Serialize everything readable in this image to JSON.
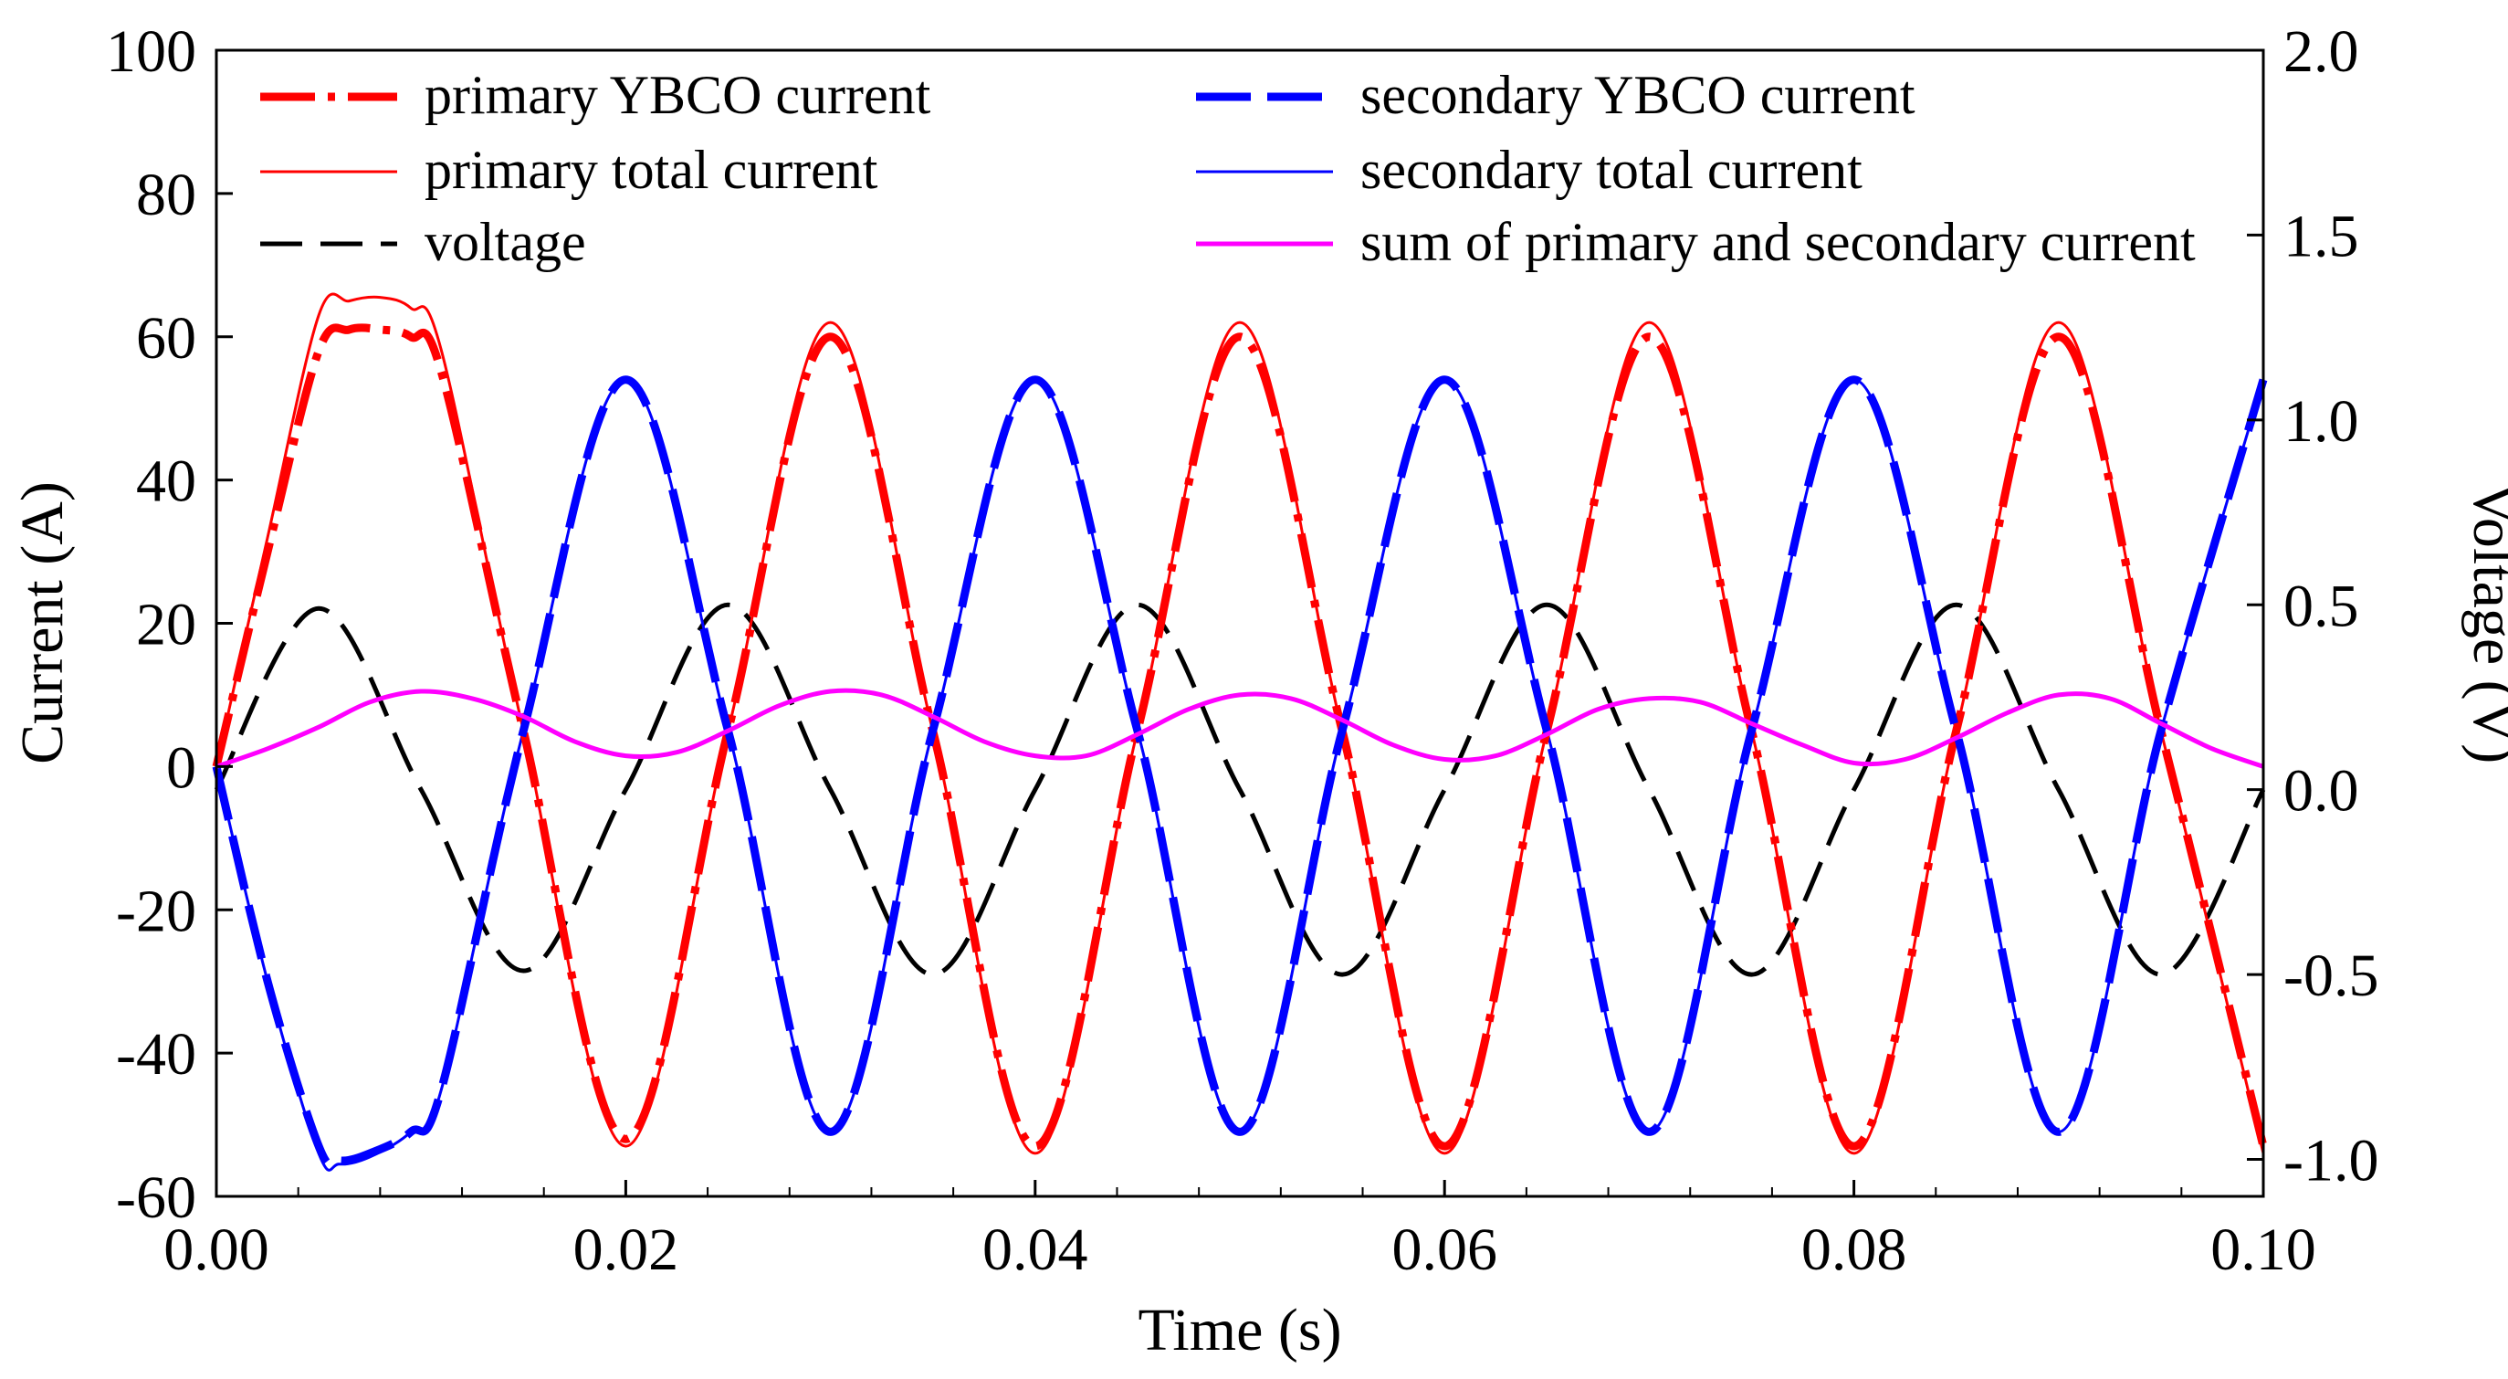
{
  "chart_data": {
    "type": "line",
    "title": "",
    "xlabel": "Time (s)",
    "ylabel": "Current (A)",
    "y2label": "Voltage (V)",
    "xlim": [
      0,
      0.1
    ],
    "ylim": [
      -60,
      100
    ],
    "y2lim": [
      -1.1,
      2.0
    ],
    "x_ticks": [
      "0.00",
      "0.02",
      "0.04",
      "0.06",
      "0.08",
      "0.10"
    ],
    "y_ticks": [
      "100",
      "80",
      "60",
      "40",
      "20",
      "0",
      "-20",
      "-40",
      "-60"
    ],
    "y2_ticks": [
      "2.0",
      "1.5",
      "1.0",
      "0.5",
      "0.0",
      "-0.5",
      "-1.0"
    ],
    "grid": false,
    "legend_position": "top",
    "series": [
      {
        "name": "primary YBCO current",
        "axis": "left",
        "color": "#ff0000",
        "style": "thick-dash-dot",
        "x": [
          0,
          0.0025,
          0.005,
          0.0065,
          0.008,
          0.0095,
          0.011,
          0.015,
          0.02,
          0.025,
          0.03,
          0.035,
          0.04,
          0.045,
          0.05,
          0.055,
          0.06,
          0.065,
          0.07,
          0.075,
          0.08,
          0.085,
          0.09,
          0.095,
          0.1
        ],
        "values": [
          0,
          30,
          58,
          61,
          61,
          60,
          55,
          5,
          -52,
          5,
          60,
          5,
          -53,
          5,
          60,
          5,
          -53,
          5,
          60,
          5,
          -53,
          5,
          60,
          5,
          -53
        ]
      },
      {
        "name": "primary total current",
        "axis": "left",
        "color": "#ff0000",
        "style": "thin-solid",
        "x": [
          0,
          0.0025,
          0.005,
          0.0065,
          0.008,
          0.0095,
          0.011,
          0.015,
          0.02,
          0.025,
          0.03,
          0.035,
          0.04,
          0.045,
          0.05,
          0.055,
          0.06,
          0.065,
          0.07,
          0.075,
          0.08,
          0.085,
          0.09,
          0.095,
          0.1
        ],
        "values": [
          0,
          32,
          63,
          65,
          65.5,
          64,
          58,
          5,
          -53,
          5,
          62,
          5,
          -54,
          5,
          62,
          5,
          -54,
          5,
          62,
          5,
          -54,
          5,
          62,
          5,
          -54
        ]
      },
      {
        "name": "voltage",
        "axis": "right",
        "color": "#000000",
        "style": "dashed",
        "x": [
          0,
          0.005,
          0.01,
          0.015,
          0.02,
          0.025,
          0.03,
          0.035,
          0.04,
          0.045,
          0.05,
          0.055,
          0.06,
          0.065,
          0.07,
          0.075,
          0.08,
          0.085,
          0.09,
          0.095,
          0.1
        ],
        "values": [
          0,
          0.49,
          0,
          -0.49,
          0,
          0.5,
          0,
          -0.5,
          0,
          0.5,
          0,
          -0.5,
          0,
          0.5,
          0,
          -0.5,
          0,
          0.5,
          0,
          -0.5,
          0
        ]
      },
      {
        "name": "secondary YBCO current",
        "axis": "left",
        "color": "#0000ff",
        "style": "thick-dashed",
        "x": [
          0,
          0.0025,
          0.005,
          0.006,
          0.0075,
          0.0095,
          0.011,
          0.015,
          0.02,
          0.025,
          0.03,
          0.035,
          0.04,
          0.045,
          0.05,
          0.055,
          0.06,
          0.065,
          0.07,
          0.075,
          0.08,
          0.085,
          0.09,
          0.095,
          0.1
        ],
        "values": [
          0,
          -30,
          -53,
          -55,
          -54,
          -51,
          -45,
          5,
          54,
          5,
          -51,
          5,
          54,
          5,
          -51,
          5,
          54,
          5,
          -51,
          5,
          54,
          5,
          -51,
          5,
          54
        ]
      },
      {
        "name": "secondary total current",
        "axis": "left",
        "color": "#0000ff",
        "style": "thin-solid",
        "x": [
          0,
          0.0025,
          0.005,
          0.006,
          0.0075,
          0.0095,
          0.011,
          0.015,
          0.02,
          0.025,
          0.03,
          0.035,
          0.04,
          0.045,
          0.05,
          0.055,
          0.06,
          0.065,
          0.07,
          0.075,
          0.08,
          0.085,
          0.09,
          0.095,
          0.1
        ],
        "values": [
          0,
          -30,
          -54,
          -55.5,
          -54.5,
          -51,
          -45,
          5,
          54,
          5,
          -51,
          5,
          54,
          5,
          -51,
          5,
          54,
          5,
          -51,
          5,
          54,
          5,
          -51,
          5,
          54
        ]
      },
      {
        "name": "sum of primary and secondary current",
        "axis": "left",
        "color": "#ff00ff",
        "style": "solid",
        "x": [
          0,
          0.0025,
          0.005,
          0.0075,
          0.01,
          0.0125,
          0.015,
          0.0175,
          0.02,
          0.0225,
          0.025,
          0.0275,
          0.03,
          0.0325,
          0.035,
          0.0375,
          0.04,
          0.0425,
          0.045,
          0.0475,
          0.05,
          0.0525,
          0.055,
          0.0575,
          0.06,
          0.0625,
          0.065,
          0.0675,
          0.07,
          0.0725,
          0.075,
          0.0775,
          0.08,
          0.0825,
          0.085,
          0.0875,
          0.09,
          0.0925,
          0.095,
          0.0975,
          0.1
        ],
        "values": [
          0,
          2.5,
          5.5,
          9,
          10.5,
          9.5,
          7,
          3.5,
          1.5,
          2,
          5,
          8.5,
          10.5,
          10,
          7,
          3.5,
          1.5,
          1.5,
          4.5,
          8,
          10,
          9.5,
          6.5,
          3,
          1,
          1.5,
          4.5,
          8,
          9.5,
          9,
          6,
          3,
          0.5,
          1,
          4,
          7.5,
          10,
          9.5,
          6,
          2.5,
          0
        ]
      }
    ]
  }
}
